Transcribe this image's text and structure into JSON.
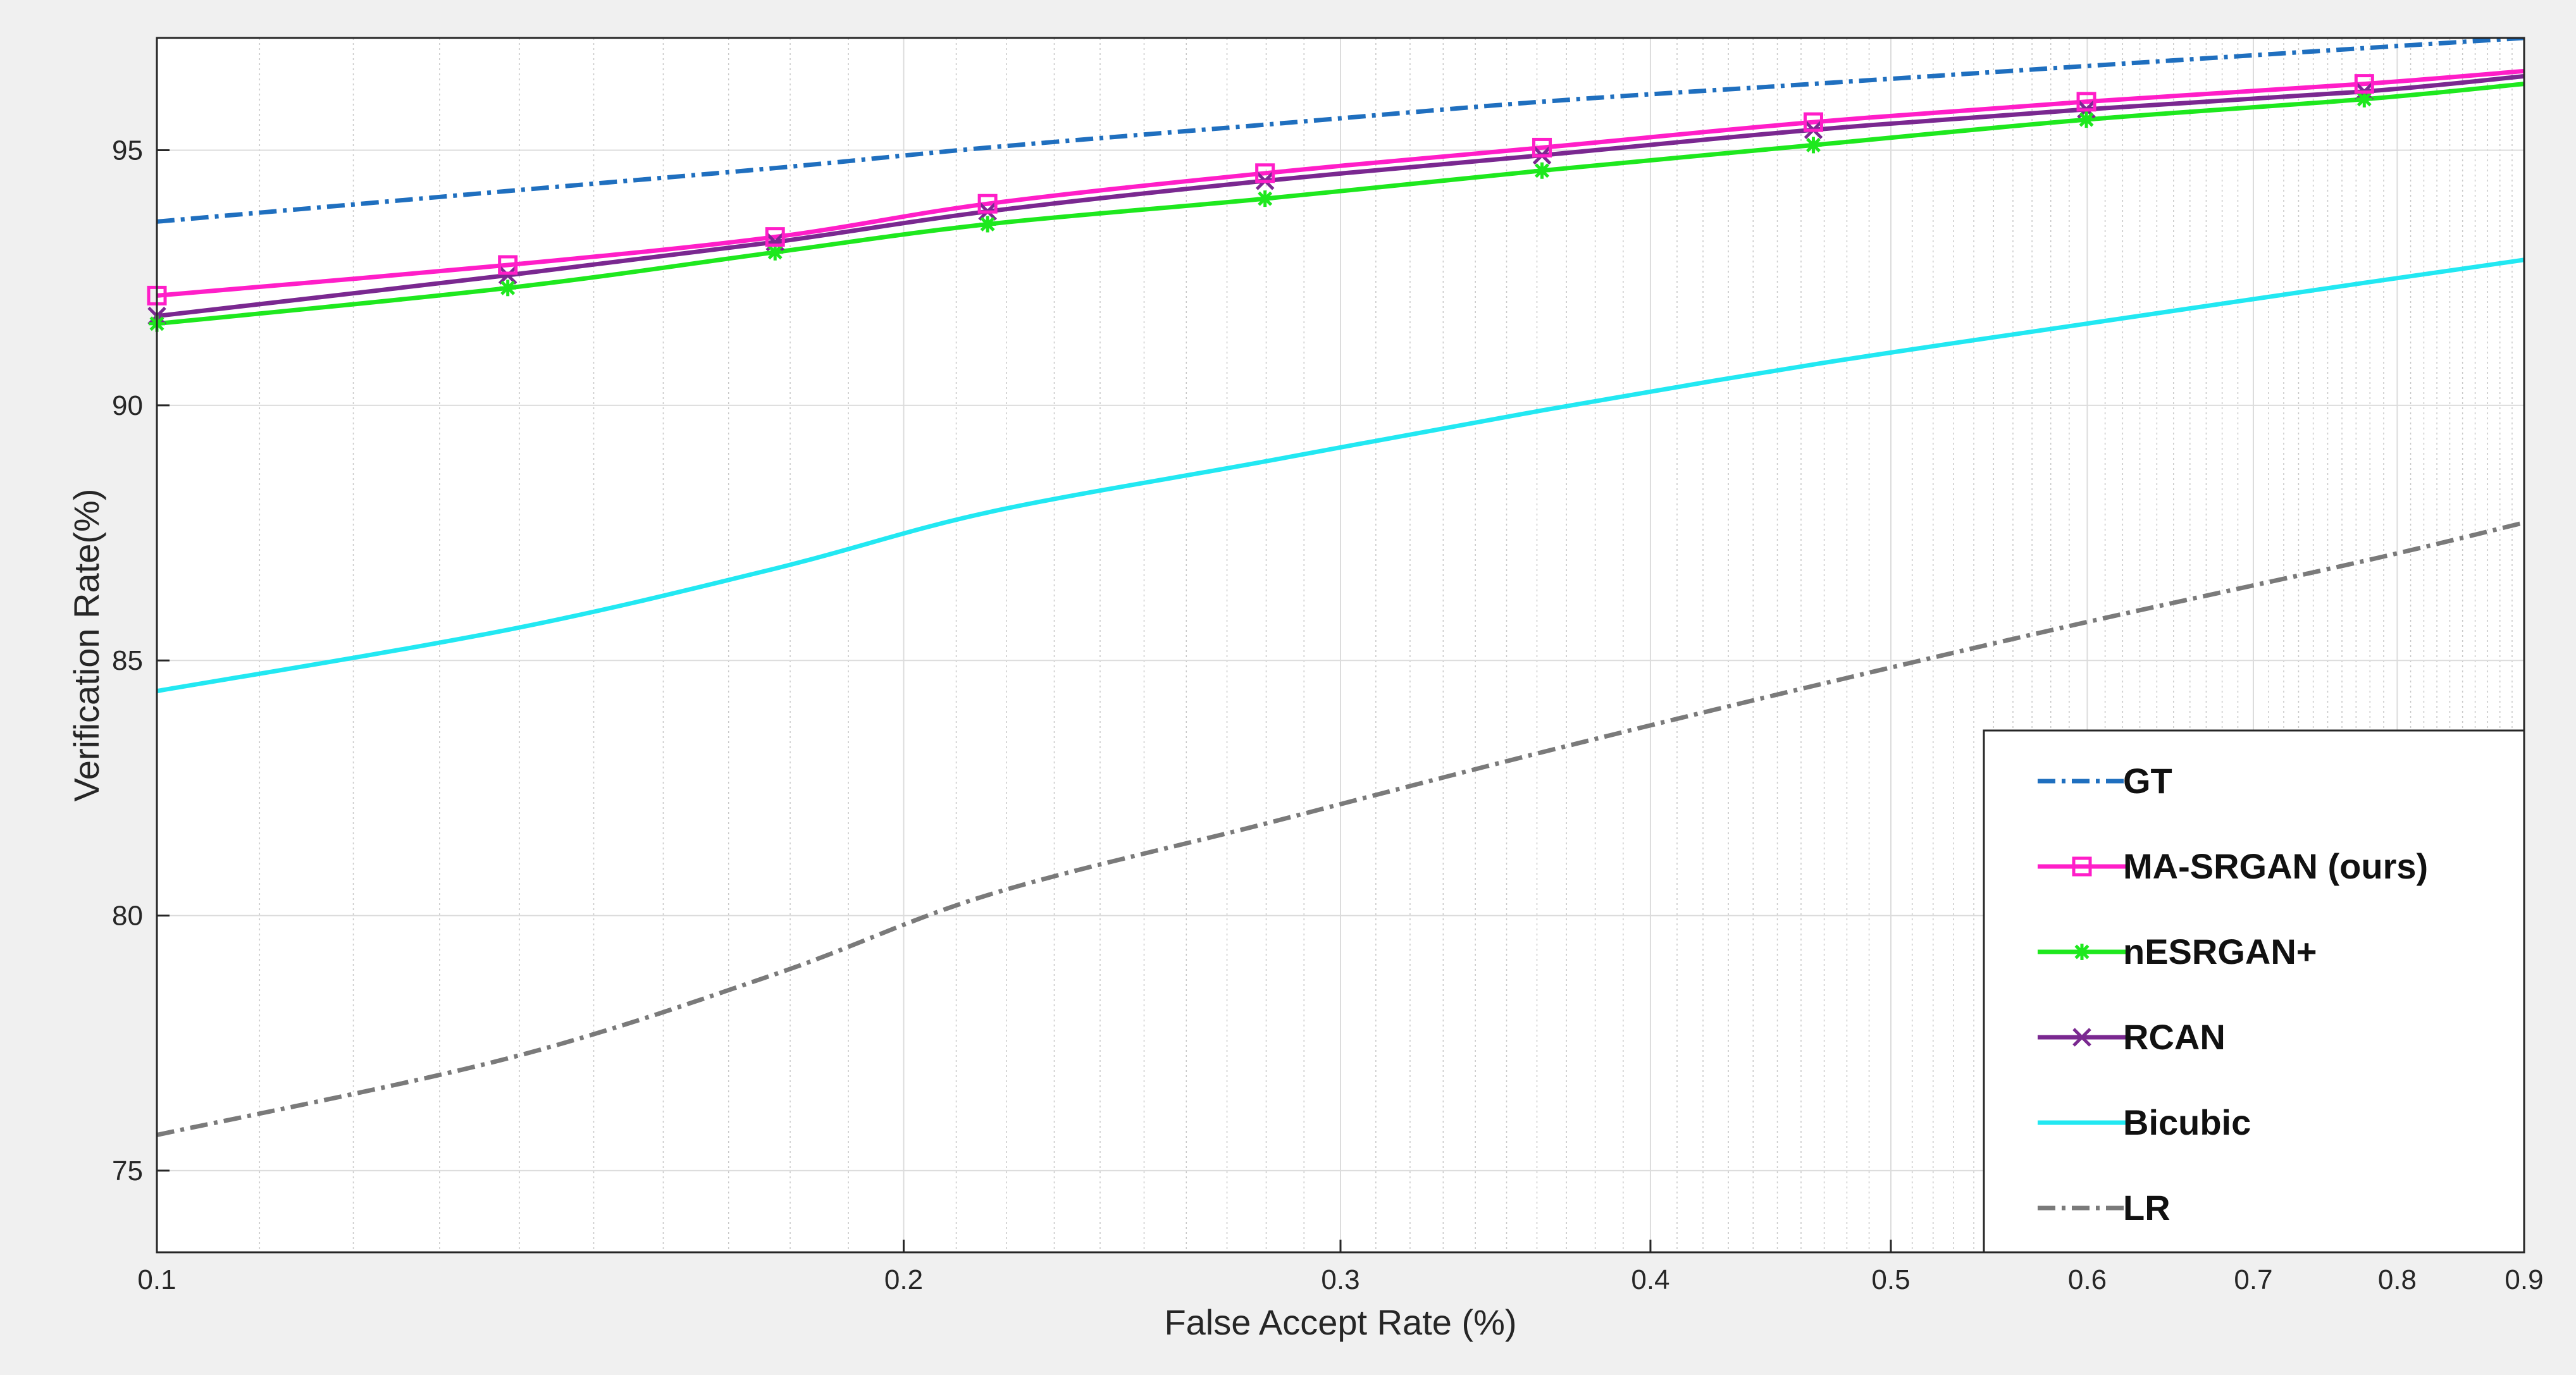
{
  "chart_data": {
    "type": "line",
    "xlabel": "False Accept Rate (%)",
    "ylabel": "Verification Rate(%)",
    "x_scale": "log",
    "xlim": [
      0.1,
      0.9
    ],
    "ylim": [
      73.4,
      97.2
    ],
    "grid": true,
    "minor_grid": true,
    "legend_position": "bottom-right",
    "x_ticks": [
      0.1,
      0.2,
      0.3,
      0.4,
      0.5,
      0.6,
      0.7,
      0.8,
      0.9
    ],
    "x_tick_labels": [
      "0.1",
      "0.2",
      "0.3",
      "0.4",
      "0.5",
      "0.6",
      "0.7",
      "0.8",
      "0.9"
    ],
    "y_ticks": [
      75,
      80,
      85,
      90,
      95
    ],
    "y_tick_labels": [
      "75",
      "80",
      "85",
      "90",
      "95"
    ],
    "marker_x": [
      0.1,
      0.1385,
      0.1775,
      0.2162,
      0.2797,
      0.3617,
      0.4653,
      0.5995,
      0.7759
    ],
    "series": [
      {
        "name": "GT",
        "color": "#1f6fbf",
        "line_style": "dashdot",
        "marker": "none",
        "x": [
          0.1,
          0.1385,
          0.1775,
          0.2162,
          0.2797,
          0.3617,
          0.4653,
          0.5995,
          0.7759,
          0.9
        ],
        "values": [
          93.6,
          94.2,
          94.65,
          95.05,
          95.5,
          95.95,
          96.3,
          96.65,
          97.0,
          97.2
        ]
      },
      {
        "name": "MA-SRGAN (ours)",
        "color": "#ff1ec8",
        "line_style": "solid",
        "marker": "square",
        "x": [
          0.1,
          0.1385,
          0.1775,
          0.2162,
          0.2797,
          0.3617,
          0.4653,
          0.5995,
          0.7759,
          0.9
        ],
        "values": [
          92.15,
          92.75,
          93.3,
          93.95,
          94.55,
          95.05,
          95.55,
          95.95,
          96.3,
          96.55
        ]
      },
      {
        "name": "nESRGAN+",
        "color": "#1ee81e",
        "line_style": "solid",
        "marker": "asterisk",
        "x": [
          0.1,
          0.1385,
          0.1775,
          0.2162,
          0.2797,
          0.3617,
          0.4653,
          0.5995,
          0.7759,
          0.9
        ],
        "values": [
          91.6,
          92.3,
          93.0,
          93.55,
          94.05,
          94.6,
          95.1,
          95.6,
          96.0,
          96.3
        ]
      },
      {
        "name": "RCAN",
        "color": "#7a2890",
        "line_style": "solid",
        "marker": "x",
        "x": [
          0.1,
          0.1385,
          0.1775,
          0.2162,
          0.2797,
          0.3617,
          0.4653,
          0.5995,
          0.7759,
          0.9
        ],
        "values": [
          91.75,
          92.55,
          93.2,
          93.8,
          94.4,
          94.9,
          95.4,
          95.8,
          96.15,
          96.45
        ]
      },
      {
        "name": "Bicubic",
        "color": "#22e8f2",
        "line_style": "solid",
        "marker": "none",
        "x": [
          0.1,
          0.1385,
          0.1775,
          0.2162,
          0.2797,
          0.3617,
          0.4653,
          0.5995,
          0.7759,
          0.9
        ],
        "values": [
          84.4,
          85.6,
          86.8,
          87.9,
          88.9,
          89.9,
          90.8,
          91.6,
          92.4,
          92.85
        ]
      },
      {
        "name": "LR",
        "color": "#7a7a7a",
        "line_style": "dashdot",
        "marker": "none",
        "x": [
          0.1,
          0.1385,
          0.1775,
          0.2162,
          0.2797,
          0.3617,
          0.4653,
          0.5995,
          0.7759,
          0.9
        ],
        "values": [
          75.7,
          77.2,
          78.85,
          80.4,
          81.8,
          83.2,
          84.5,
          85.75,
          86.95,
          87.7
        ]
      }
    ]
  }
}
